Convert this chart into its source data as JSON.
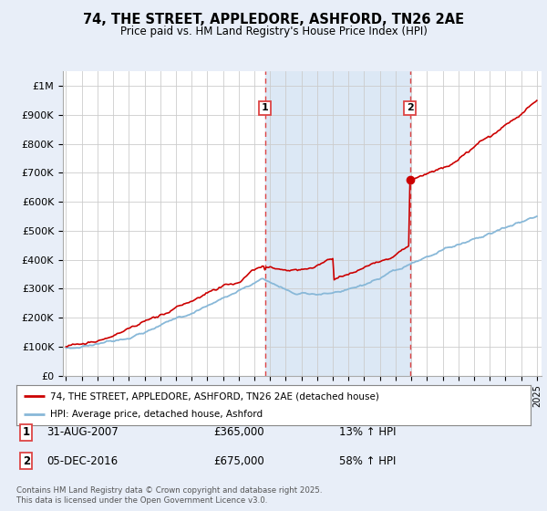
{
  "title": "74, THE STREET, APPLEDORE, ASHFORD, TN26 2AE",
  "subtitle": "Price paid vs. HM Land Registry's House Price Index (HPI)",
  "bg_color": "#e8eef8",
  "plot_bg_color": "#ffffff",
  "shade_color": "#dce8f5",
  "grid_color": "#cccccc",
  "red_line_color": "#cc0000",
  "blue_line_color": "#88b8d8",
  "dashed_line_color": "#dd4444",
  "marker1_x": 2007.67,
  "marker2_x": 2016.92,
  "sale1_date": "31-AUG-2007",
  "sale1_price": "£365,000",
  "sale1_hpi": "13% ↑ HPI",
  "sale2_date": "05-DEC-2016",
  "sale2_price": "£675,000",
  "sale2_hpi": "58% ↑ HPI",
  "legend_line1": "74, THE STREET, APPLEDORE, ASHFORD, TN26 2AE (detached house)",
  "legend_line2": "HPI: Average price, detached house, Ashford",
  "footer": "Contains HM Land Registry data © Crown copyright and database right 2025.\nThis data is licensed under the Open Government Licence v3.0.",
  "ylabel_ticks": [
    0,
    100000,
    200000,
    300000,
    400000,
    500000,
    600000,
    700000,
    800000,
    900000,
    1000000
  ],
  "ylabel_labels": [
    "£0",
    "£100K",
    "£200K",
    "£300K",
    "£400K",
    "£500K",
    "£600K",
    "£700K",
    "£800K",
    "£900K",
    "£1M"
  ],
  "xmin": 1994.8,
  "xmax": 2025.3,
  "ymin": 0,
  "ymax": 1050000
}
